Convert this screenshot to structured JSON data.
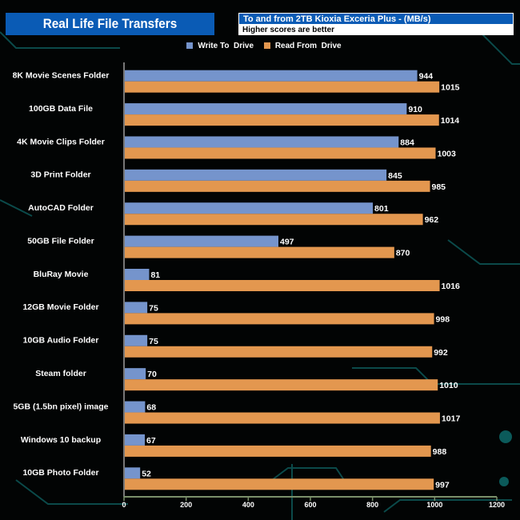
{
  "chart_data": {
    "type": "bar",
    "orientation": "horizontal",
    "title": "Real Life File Transfers",
    "subtitle": "To and from 2TB Kioxia Exceria Plus - (MB/s)",
    "note": "Higher scores are better",
    "categories": [
      "8K Movie Scenes Folder",
      "100GB Data File",
      "4K Movie Clips Folder",
      "3D Print Folder",
      "AutoCAD Folder",
      "50GB File Folder",
      "BluRay Movie",
      "12GB Movie Folder",
      "10GB Audio Folder",
      "Steam folder",
      "5GB (1.5bn pixel) image",
      "Windows 10 backup",
      "10GB Photo Folder"
    ],
    "series": [
      {
        "name": "Write To  Drive",
        "color": "#7594cc",
        "values": [
          944,
          910,
          884,
          845,
          801,
          497,
          81,
          75,
          75,
          70,
          68,
          67,
          52
        ]
      },
      {
        "name": "Read From  Drive",
        "color": "#e3974f",
        "values": [
          1015,
          1014,
          1003,
          985,
          962,
          870,
          1016,
          998,
          992,
          1010,
          1017,
          988,
          997
        ]
      }
    ],
    "xlim": [
      0,
      1200
    ],
    "xticks": [
      "0",
      "200",
      "400",
      "600",
      "800",
      "1000",
      "1200"
    ],
    "legend": "top-center",
    "grid": false
  }
}
